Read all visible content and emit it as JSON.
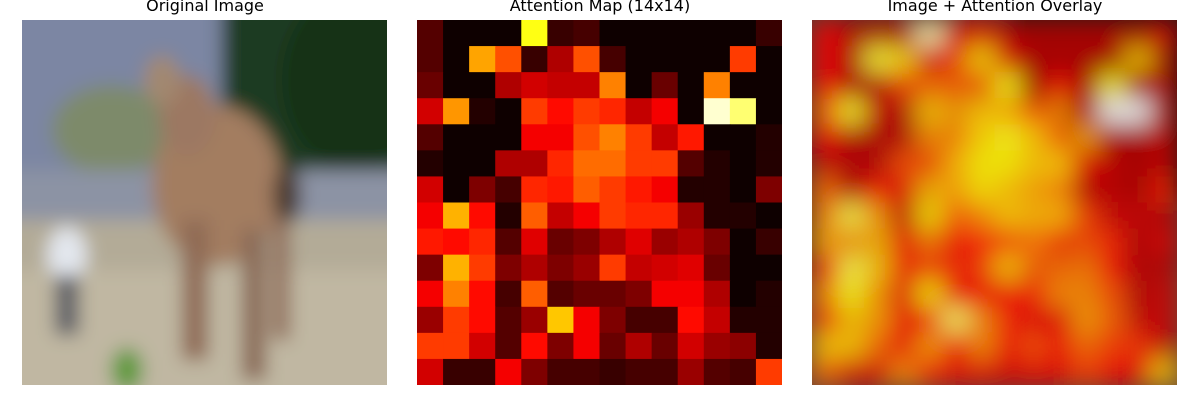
{
  "panels": [
    {
      "title": "Original Image"
    },
    {
      "title": "Attention Map (14x14)"
    },
    {
      "title": "Image + Attention Overlay"
    }
  ],
  "attention": {
    "grid_size": 14,
    "colormap": "hot",
    "values": [
      [
        0.12,
        0.02,
        0.02,
        0.02,
        0.75,
        0.08,
        0.1,
        0.02,
        0.02,
        0.02,
        0.02,
        0.02,
        0.02,
        0.08
      ],
      [
        0.12,
        0.02,
        0.6,
        0.48,
        0.08,
        0.25,
        0.48,
        0.1,
        0.02,
        0.02,
        0.02,
        0.02,
        0.45,
        0.02
      ],
      [
        0.15,
        0.02,
        0.02,
        0.25,
        0.3,
        0.28,
        0.28,
        0.55,
        0.02,
        0.15,
        0.02,
        0.55,
        0.02,
        0.02
      ],
      [
        0.3,
        0.58,
        0.05,
        0.02,
        0.45,
        0.38,
        0.45,
        0.42,
        0.28,
        0.35,
        0.02,
        0.95,
        0.85,
        0.02
      ],
      [
        0.12,
        0.02,
        0.02,
        0.02,
        0.35,
        0.35,
        0.48,
        0.55,
        0.45,
        0.28,
        0.4,
        0.02,
        0.02,
        0.05
      ],
      [
        0.05,
        0.02,
        0.02,
        0.25,
        0.25,
        0.42,
        0.52,
        0.52,
        0.45,
        0.45,
        0.12,
        0.05,
        0.02,
        0.05
      ],
      [
        0.3,
        0.02,
        0.18,
        0.1,
        0.42,
        0.4,
        0.5,
        0.45,
        0.4,
        0.35,
        0.05,
        0.05,
        0.02,
        0.18
      ],
      [
        0.35,
        0.62,
        0.38,
        0.05,
        0.5,
        0.28,
        0.35,
        0.45,
        0.42,
        0.42,
        0.22,
        0.05,
        0.05,
        0.02
      ],
      [
        0.4,
        0.38,
        0.42,
        0.12,
        0.32,
        0.15,
        0.18,
        0.25,
        0.32,
        0.22,
        0.25,
        0.18,
        0.02,
        0.08
      ],
      [
        0.18,
        0.62,
        0.45,
        0.18,
        0.25,
        0.18,
        0.22,
        0.45,
        0.28,
        0.3,
        0.32,
        0.15,
        0.02,
        0.02
      ],
      [
        0.35,
        0.55,
        0.38,
        0.1,
        0.5,
        0.12,
        0.15,
        0.15,
        0.18,
        0.35,
        0.35,
        0.25,
        0.02,
        0.05
      ],
      [
        0.22,
        0.45,
        0.38,
        0.12,
        0.22,
        0.65,
        0.35,
        0.18,
        0.1,
        0.1,
        0.38,
        0.28,
        0.05,
        0.05
      ],
      [
        0.45,
        0.45,
        0.3,
        0.12,
        0.38,
        0.18,
        0.35,
        0.15,
        0.25,
        0.15,
        0.3,
        0.22,
        0.2,
        0.05
      ],
      [
        0.3,
        0.08,
        0.08,
        0.35,
        0.18,
        0.1,
        0.1,
        0.08,
        0.1,
        0.1,
        0.22,
        0.12,
        0.1,
        0.45
      ]
    ]
  },
  "image": {
    "palette": {
      "sky": "#7f8aa6",
      "foliage": "#1b3a1f",
      "road": "#8b91a0",
      "grass": "#bcb29a",
      "deer": "#a27c62",
      "deer_dark": "#6b4f3f",
      "person": "#e2e6ee"
    }
  }
}
